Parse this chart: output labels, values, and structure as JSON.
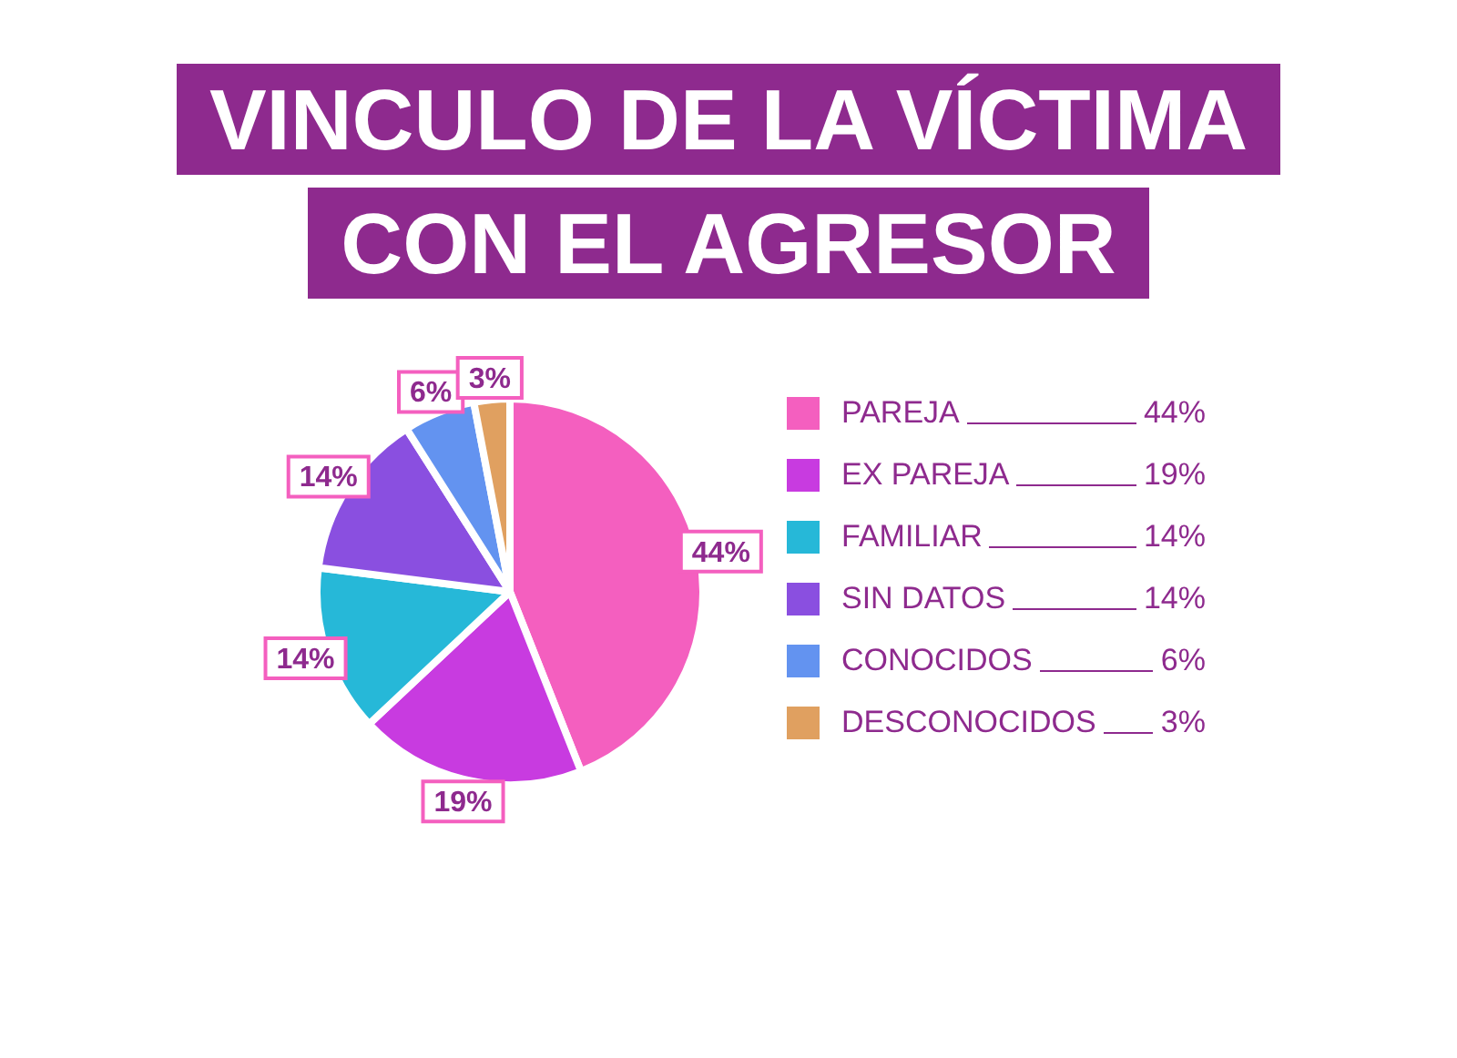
{
  "chart_data": {
    "type": "pie",
    "title": "VINCULO DE LA VÍCTIMA CON EL AGRESOR",
    "categories": [
      "PAREJA",
      "EX PAREJA",
      "FAMILIAR",
      "SIN DATOS",
      "CONOCIDOS",
      "DESCONOCIDOS"
    ],
    "values": [
      44,
      19,
      14,
      14,
      6,
      3
    ],
    "colors": [
      "#f45fbf",
      "#c83be0",
      "#26b8d8",
      "#8a4fe0",
      "#6393f0",
      "#e0a060"
    ],
    "value_labels": [
      "44%",
      "19%",
      "14%",
      "14%",
      "6%",
      "3%"
    ],
    "legend": "right"
  }
}
